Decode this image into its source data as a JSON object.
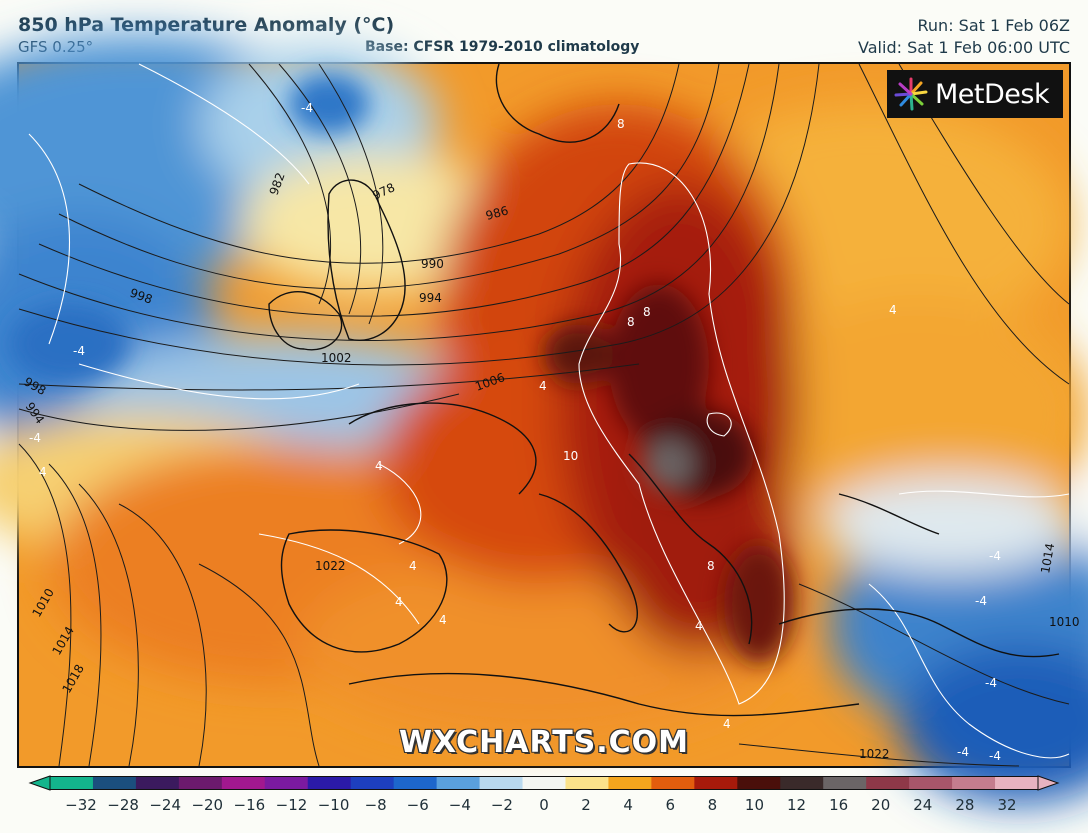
{
  "header": {
    "title": "850 hPa Temperature Anomaly (°C)",
    "model": "GFS 0.25°",
    "base": "Base: CFSR 1979-2010 climatology",
    "run": "Run: Sat 1 Feb 06Z",
    "valid": "Valid: Sat 1 Feb 06:00 UTC"
  },
  "logo": {
    "text": "MetDesk",
    "icon": "metdesk-starburst-icon"
  },
  "watermark": "WXCHARTS.COM",
  "map": {
    "isobar_labels": [
      "982",
      "978",
      "986",
      "990",
      "994",
      "998",
      "1002",
      "1006",
      "998",
      "994",
      "1010",
      "1014",
      "1018",
      "1022",
      "1022",
      "1014",
      "1010"
    ],
    "anomaly_labels": [
      "-4",
      "-4",
      "-4",
      "-4",
      "-4",
      "-4",
      "-4",
      "-4",
      "4",
      "4",
      "4",
      "4",
      "4",
      "4",
      "4",
      "4",
      "4",
      "8",
      "8",
      "8",
      "8",
      "10"
    ]
  },
  "colorbar": {
    "ticks": [
      "−32",
      "−28",
      "−24",
      "−20",
      "−16",
      "−12",
      "−10",
      "−8",
      "−6",
      "−4",
      "−2",
      "0",
      "2",
      "4",
      "6",
      "8",
      "10",
      "12",
      "16",
      "20",
      "24",
      "28",
      "32"
    ],
    "colors": [
      "#13b58c",
      "#1b4f7e",
      "#3b1a5e",
      "#6c1a6d",
      "#a2188f",
      "#7b1aa0",
      "#2b1aa8",
      "#1d3fbf",
      "#1d66cc",
      "#5aa0dd",
      "#b9d9ee",
      "#f3f5f1",
      "#fbe28a",
      "#f4a51d",
      "#e25d0d",
      "#a71a0b",
      "#4a0f0a",
      "#3a2a2a",
      "#6b6566",
      "#8e3848",
      "#a8566a",
      "#c47d8e",
      "#e7b3c0"
    ]
  }
}
